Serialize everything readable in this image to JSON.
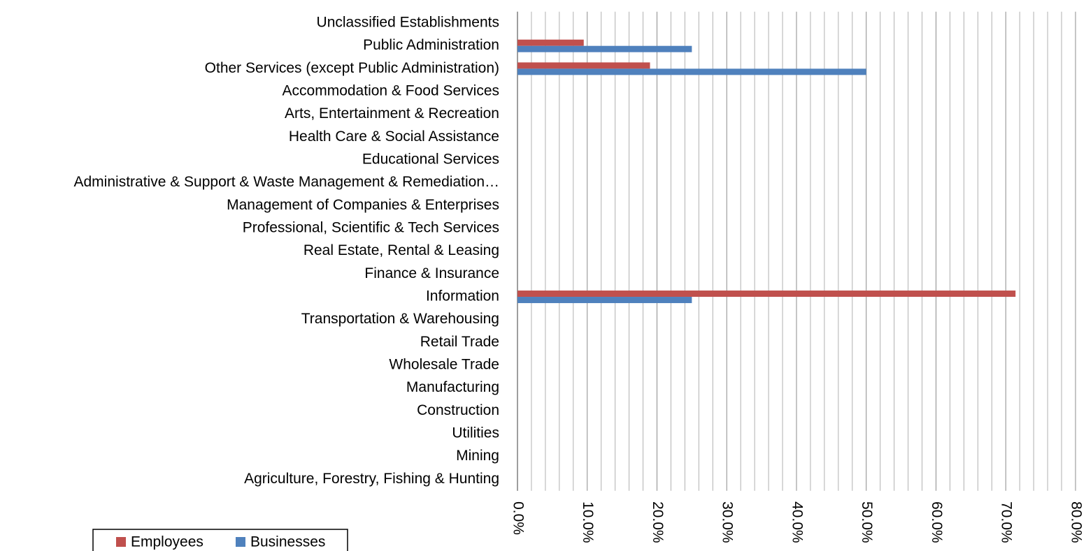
{
  "chart_data": {
    "type": "hbar",
    "categories": [
      "Unclassified Establishments",
      "Public Administration",
      "Other Services (except Public Administration)",
      "Accommodation & Food Services",
      "Arts, Entertainment & Recreation",
      "Health Care & Social Assistance",
      "Educational Services",
      "Administrative & Support & Waste Management & Remediation…",
      "Management of Companies & Enterprises",
      "Professional, Scientific & Tech Services",
      "Real Estate, Rental & Leasing",
      "Finance & Insurance",
      "Information",
      "Transportation & Warehousing",
      "Retail Trade",
      "Wholesale Trade",
      "Manufacturing",
      "Construction",
      "Utilities",
      "Mining",
      "Agriculture, Forestry, Fishing & Hunting"
    ],
    "series": [
      {
        "name": "Employees",
        "color": "#c0504d",
        "values": [
          0,
          9.5,
          19.0,
          0,
          0,
          0,
          0,
          0,
          0,
          0,
          0,
          0,
          71.4,
          0,
          0,
          0,
          0,
          0,
          0,
          0,
          0
        ]
      },
      {
        "name": "Businesses",
        "color": "#4f81bd",
        "values": [
          0,
          25.0,
          50.0,
          0,
          0,
          0,
          0,
          0,
          0,
          0,
          0,
          0,
          25.0,
          0,
          0,
          0,
          0,
          0,
          0,
          0,
          0
        ]
      }
    ],
    "xlim": [
      0,
      80
    ],
    "xticks": [
      {
        "value": 0,
        "label": "0.0%"
      },
      {
        "value": 10,
        "label": "10.0%"
      },
      {
        "value": 20,
        "label": "20.0%"
      },
      {
        "value": 30,
        "label": "30.0%"
      },
      {
        "value": 40,
        "label": "40.0%"
      },
      {
        "value": 50,
        "label": "50.0%"
      },
      {
        "value": 60,
        "label": "60.0%"
      },
      {
        "value": 70,
        "label": "70.0%"
      },
      {
        "value": 80,
        "label": "80.0%"
      }
    ],
    "xminorticks": [
      2,
      4,
      6,
      8,
      12,
      14,
      16,
      18,
      22,
      24,
      26,
      28,
      32,
      34,
      36,
      38,
      42,
      44,
      46,
      48,
      52,
      54,
      56,
      58,
      62,
      64,
      66,
      68,
      72,
      74,
      76,
      78
    ],
    "grid": true,
    "legend": "bottom"
  }
}
